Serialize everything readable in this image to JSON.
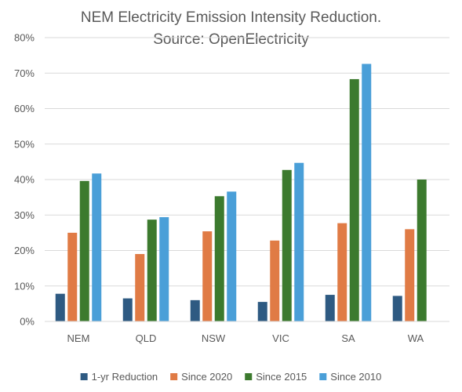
{
  "chart_data": {
    "type": "bar",
    "title_lines": [
      "NEM Electricity Emission Intensity Reduction.",
      "Source: OpenElectricity"
    ],
    "categories": [
      "NEM",
      "QLD",
      "NSW",
      "VIC",
      "SA",
      "WA"
    ],
    "series": [
      {
        "name": "1-yr Reduction",
        "color": "#2E5A82",
        "values": [
          7.8,
          6.5,
          6.0,
          5.5,
          7.5,
          7.2
        ]
      },
      {
        "name": "Since 2020",
        "color": "#E07B45",
        "values": [
          25.0,
          19.0,
          25.4,
          22.8,
          27.7,
          26.0
        ]
      },
      {
        "name": "Since 2015",
        "color": "#3C7A2E",
        "values": [
          39.6,
          28.7,
          35.3,
          42.7,
          68.3,
          40.0
        ]
      },
      {
        "name": "Since 2010",
        "color": "#4A9FD8",
        "values": [
          41.7,
          29.4,
          36.6,
          44.7,
          72.6,
          null
        ]
      }
    ],
    "y_ticks": [
      "0%",
      "10%",
      "20%",
      "30%",
      "40%",
      "50%",
      "60%",
      "70%",
      "80%"
    ],
    "ylim": [
      0,
      80
    ],
    "grid": true,
    "legend_position": "bottom",
    "xlabel": "",
    "ylabel": ""
  }
}
